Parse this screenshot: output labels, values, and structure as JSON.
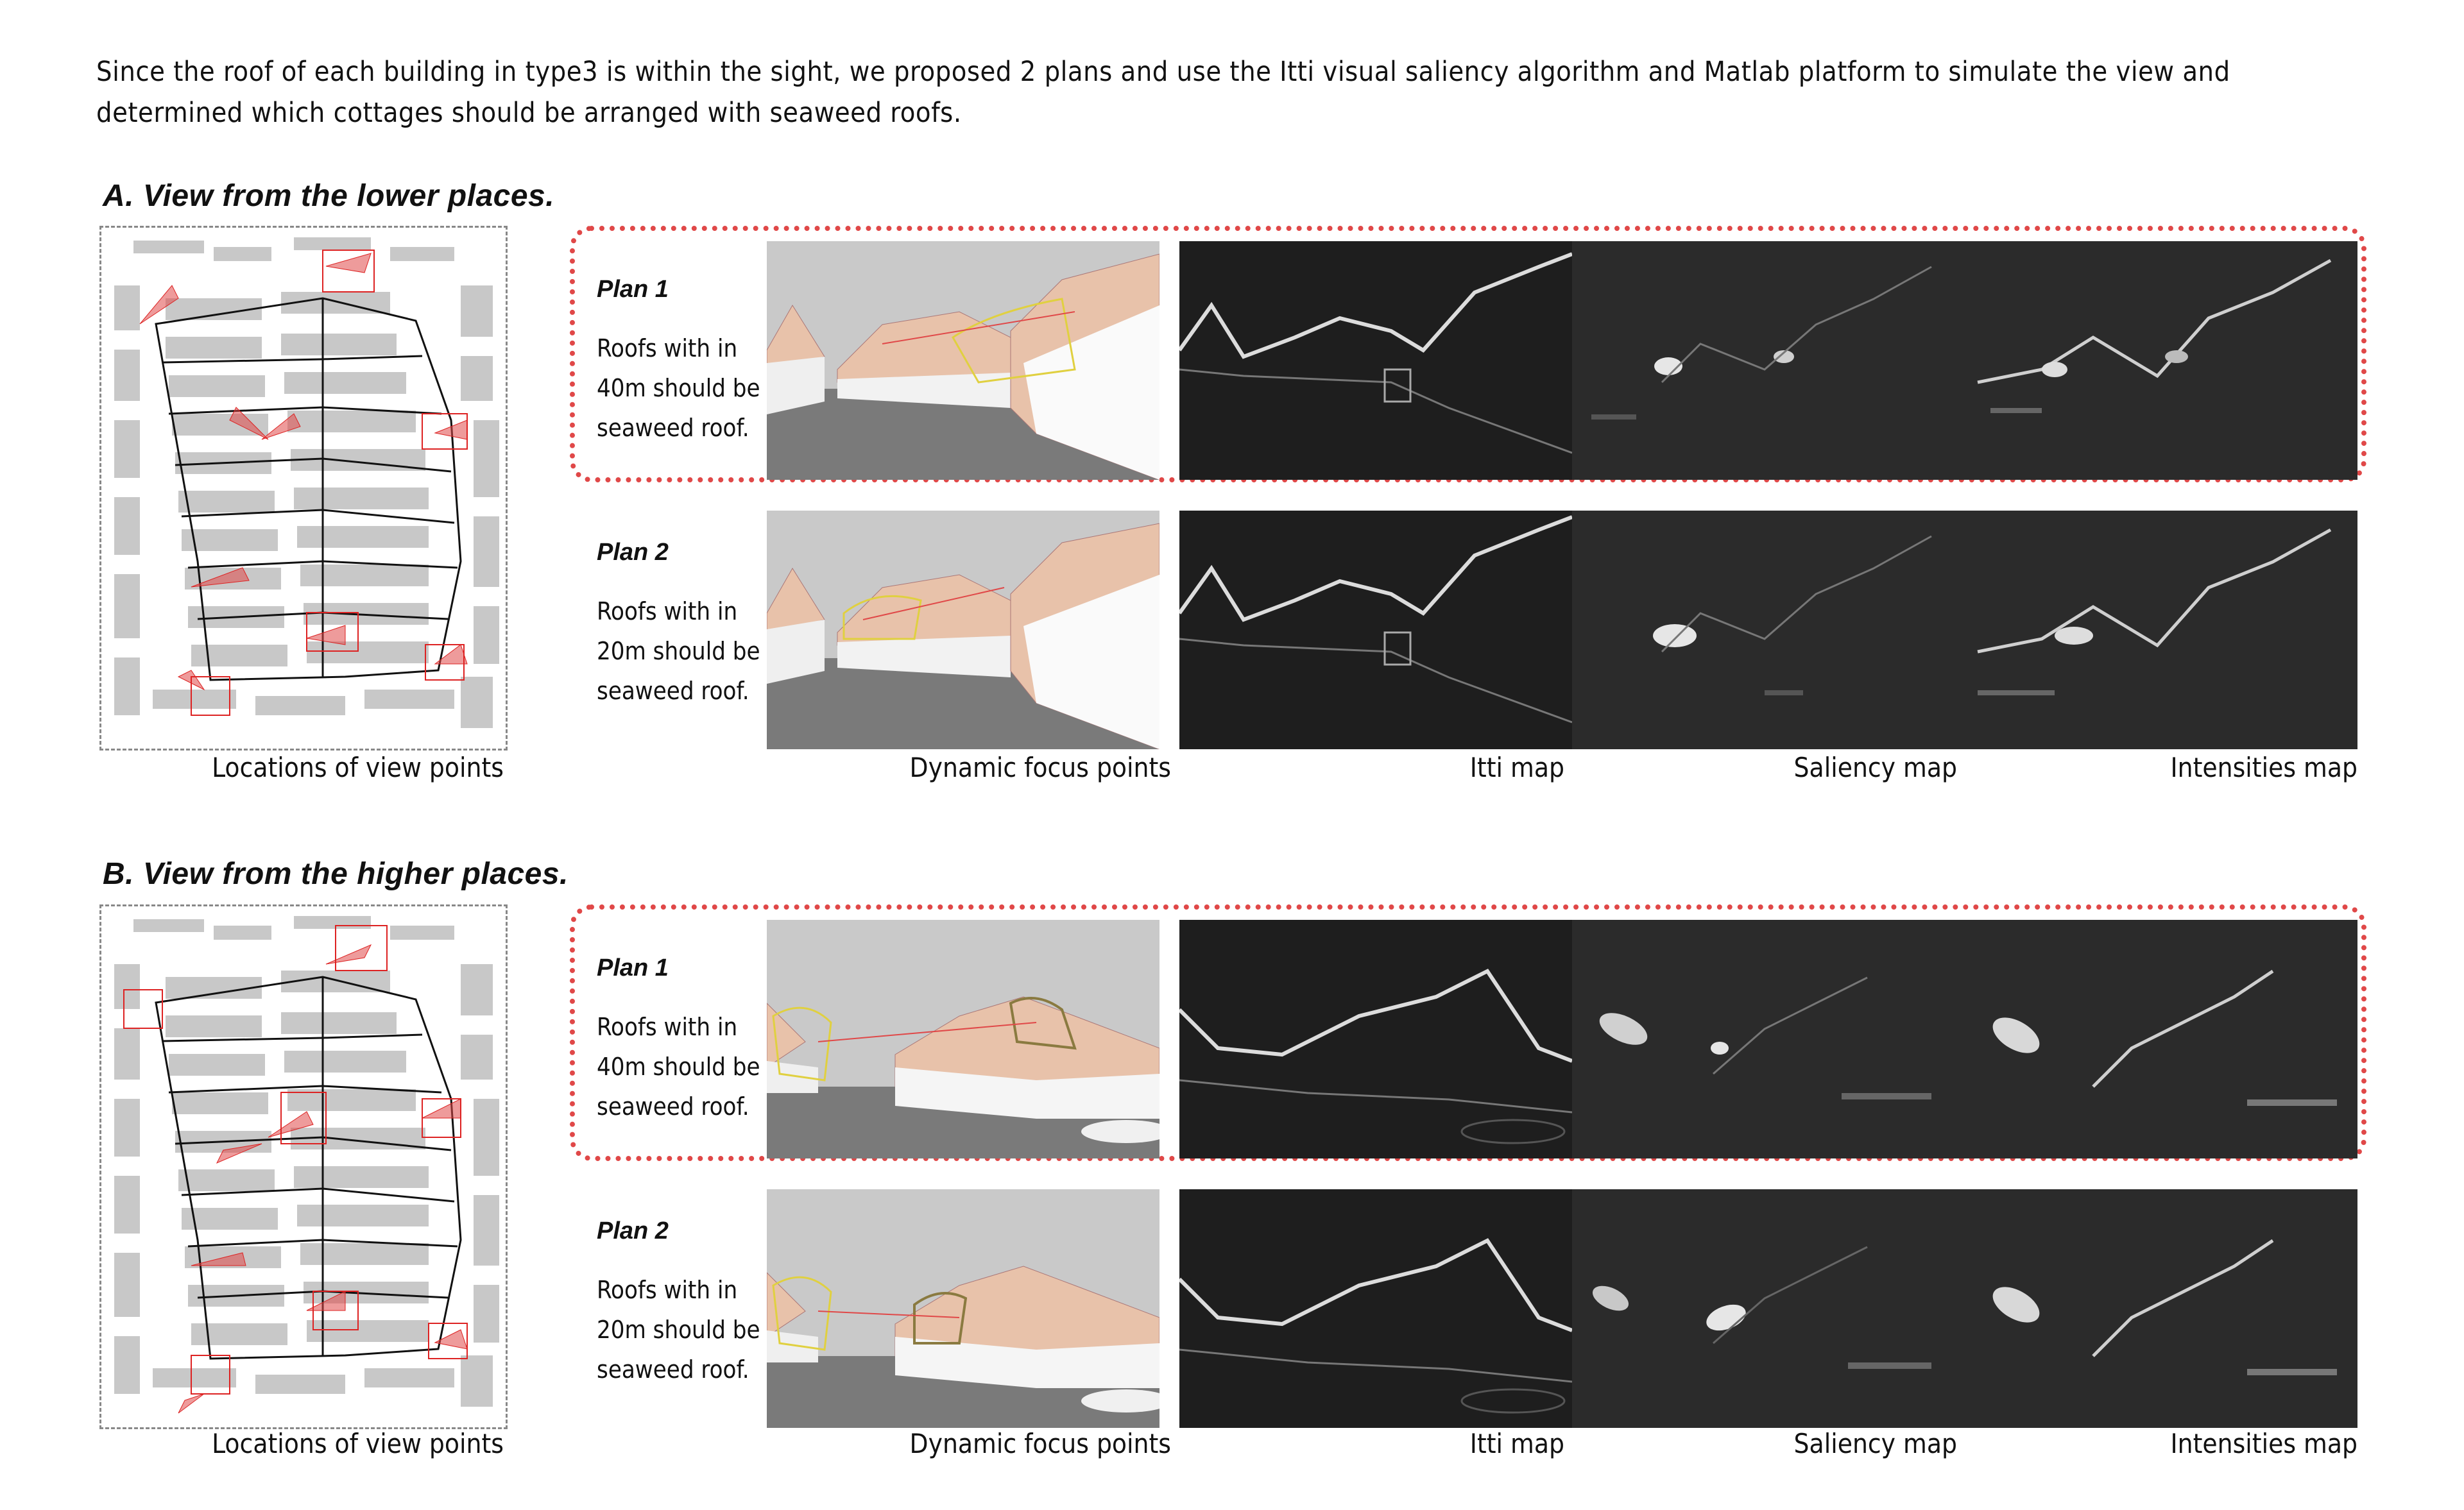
{
  "intro": "Since the roof of each building in type3 is within the sight, we proposed 2 plans and use the Itti visual saliency algorithm and Matlab platform to simulate the view and determined which cottages should be arranged with seaweed roofs.",
  "sections": [
    {
      "title": "A. View from the lower places.",
      "plans": [
        {
          "label": "Plan 1",
          "desc": [
            "Roofs with in",
            "40m should be",
            "seaweed roof."
          ]
        },
        {
          "label": "Plan 2",
          "desc": [
            "Roofs with in",
            "20m should be",
            "seaweed roof."
          ]
        }
      ],
      "captions": {
        "map": "Locations of view points",
        "dynamic": "Dynamic focus points",
        "itti": "Itti map",
        "saliency": "Saliency map",
        "intensities": "Intensities map"
      }
    },
    {
      "title": "B. View from the higher places.",
      "plans": [
        {
          "label": "Plan 1",
          "desc": [
            "Roofs with in",
            "40m should be",
            "seaweed roof."
          ]
        },
        {
          "label": "Plan 2",
          "desc": [
            "Roofs with in",
            "20m should be",
            "seaweed roof."
          ]
        }
      ],
      "captions": {
        "map": "Locations of view points",
        "dynamic": "Dynamic focus points",
        "itti": "Itti map",
        "saliency": "Saliency map",
        "intensities": "Intensities map"
      }
    }
  ],
  "colors": {
    "highlight": "#e04848",
    "roof": "#e8c2aa",
    "panel_dark": "#2b2b2b",
    "sky": "#c9c9c9"
  }
}
